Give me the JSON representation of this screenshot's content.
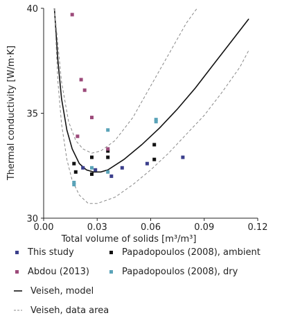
{
  "chart_data": {
    "type": "scatter",
    "title": "",
    "xlabel": "Total volume of solids [m³/m³]",
    "ylabel": "Thermal conductivity [W/m·K]",
    "xlim": [
      0.0,
      0.12
    ],
    "ylim": [
      30,
      40
    ],
    "x_ticks": [
      0.0,
      0.03,
      0.06,
      0.09,
      0.12
    ],
    "x_tick_labels": [
      "0.00",
      "0.03",
      "0.06",
      "0.09",
      "0.12"
    ],
    "y_ticks": [
      30,
      35,
      40
    ],
    "y_tick_labels": [
      "30",
      "35",
      "40"
    ],
    "grid": false,
    "legend_position": "below",
    "series": [
      {
        "name": "This study",
        "kind": "scatter",
        "color": "#3b3f8c",
        "points": [
          {
            "x": 0.022,
            "y": 32.4
          },
          {
            "x": 0.029,
            "y": 32.3
          },
          {
            "x": 0.038,
            "y": 32.0
          },
          {
            "x": 0.044,
            "y": 32.4
          },
          {
            "x": 0.058,
            "y": 32.6
          },
          {
            "x": 0.078,
            "y": 32.9
          }
        ]
      },
      {
        "name": "Papadopoulos (2008), ambient",
        "kind": "scatter",
        "color": "#111111",
        "points": [
          {
            "x": 0.017,
            "y": 32.6
          },
          {
            "x": 0.018,
            "y": 32.2
          },
          {
            "x": 0.027,
            "y": 32.1
          },
          {
            "x": 0.027,
            "y": 32.9
          },
          {
            "x": 0.036,
            "y": 32.9
          },
          {
            "x": 0.036,
            "y": 33.2
          },
          {
            "x": 0.062,
            "y": 33.5
          },
          {
            "x": 0.062,
            "y": 32.8
          }
        ]
      },
      {
        "name": "Abdou (2013)",
        "kind": "scatter",
        "color": "#9c4a7a",
        "points": [
          {
            "x": 0.016,
            "y": 39.7
          },
          {
            "x": 0.019,
            "y": 33.9
          },
          {
            "x": 0.021,
            "y": 36.6
          },
          {
            "x": 0.023,
            "y": 36.1
          },
          {
            "x": 0.027,
            "y": 34.8
          },
          {
            "x": 0.036,
            "y": 33.3
          }
        ]
      },
      {
        "name": "Papadopoulos (2008), dry",
        "kind": "scatter",
        "color": "#5aa3b8",
        "points": [
          {
            "x": 0.017,
            "y": 31.6
          },
          {
            "x": 0.017,
            "y": 31.7
          },
          {
            "x": 0.027,
            "y": 32.4
          },
          {
            "x": 0.036,
            "y": 34.2
          },
          {
            "x": 0.036,
            "y": 32.2
          },
          {
            "x": 0.063,
            "y": 34.7
          },
          {
            "x": 0.063,
            "y": 34.6
          }
        ]
      },
      {
        "name": "Veiseh, model",
        "kind": "line",
        "color": "#111111",
        "points": [
          {
            "x": 0.006,
            "y": 40.0
          },
          {
            "x": 0.008,
            "y": 37.5
          },
          {
            "x": 0.01,
            "y": 35.7
          },
          {
            "x": 0.013,
            "y": 34.2
          },
          {
            "x": 0.016,
            "y": 33.3
          },
          {
            "x": 0.02,
            "y": 32.6
          },
          {
            "x": 0.024,
            "y": 32.3
          },
          {
            "x": 0.028,
            "y": 32.2
          },
          {
            "x": 0.032,
            "y": 32.2
          },
          {
            "x": 0.036,
            "y": 32.3
          },
          {
            "x": 0.045,
            "y": 32.8
          },
          {
            "x": 0.055,
            "y": 33.5
          },
          {
            "x": 0.065,
            "y": 34.3
          },
          {
            "x": 0.075,
            "y": 35.2
          },
          {
            "x": 0.085,
            "y": 36.2
          },
          {
            "x": 0.095,
            "y": 37.3
          },
          {
            "x": 0.105,
            "y": 38.4
          },
          {
            "x": 0.115,
            "y": 39.5
          }
        ]
      },
      {
        "name": "Veiseh, data area",
        "kind": "dashed",
        "color": "#888888",
        "bands": [
          [
            {
              "x": 0.006,
              "y": 40.0
            },
            {
              "x": 0.01,
              "y": 36.5
            },
            {
              "x": 0.014,
              "y": 34.6
            },
            {
              "x": 0.018,
              "y": 33.7
            },
            {
              "x": 0.022,
              "y": 33.3
            },
            {
              "x": 0.027,
              "y": 33.1
            },
            {
              "x": 0.032,
              "y": 33.2
            },
            {
              "x": 0.04,
              "y": 33.7
            },
            {
              "x": 0.05,
              "y": 34.8
            },
            {
              "x": 0.06,
              "y": 36.3
            },
            {
              "x": 0.07,
              "y": 37.8
            },
            {
              "x": 0.08,
              "y": 39.3
            },
            {
              "x": 0.086,
              "y": 40.0
            }
          ],
          [
            {
              "x": 0.006,
              "y": 40.0
            },
            {
              "x": 0.008,
              "y": 36.5
            },
            {
              "x": 0.01,
              "y": 34.5
            },
            {
              "x": 0.013,
              "y": 32.8
            },
            {
              "x": 0.016,
              "y": 31.8
            },
            {
              "x": 0.02,
              "y": 31.1
            },
            {
              "x": 0.025,
              "y": 30.7
            },
            {
              "x": 0.03,
              "y": 30.7
            },
            {
              "x": 0.04,
              "y": 31.0
            },
            {
              "x": 0.05,
              "y": 31.6
            },
            {
              "x": 0.06,
              "y": 32.3
            },
            {
              "x": 0.07,
              "y": 33.1
            },
            {
              "x": 0.08,
              "y": 34.0
            },
            {
              "x": 0.09,
              "y": 34.9
            },
            {
              "x": 0.1,
              "y": 36.0
            },
            {
              "x": 0.11,
              "y": 37.2
            },
            {
              "x": 0.115,
              "y": 38.0
            }
          ]
        ]
      }
    ],
    "legend": [
      {
        "label": "This study",
        "marker": "square",
        "color": "#3b3f8c"
      },
      {
        "label": "Papadopoulos (2008), ambient",
        "marker": "square",
        "color": "#111111"
      },
      {
        "label": "Abdou (2013)",
        "marker": "square",
        "color": "#9c4a7a"
      },
      {
        "label": "Papadopoulos (2008), dry",
        "marker": "square",
        "color": "#5aa3b8"
      },
      {
        "label": "Veiseh, model",
        "marker": "line",
        "color": "#111111"
      },
      {
        "label": "Veiseh, data area",
        "marker": "dashed",
        "color": "#888888"
      }
    ]
  }
}
